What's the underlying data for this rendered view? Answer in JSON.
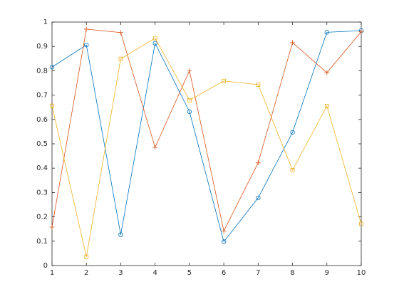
{
  "chart_data": {
    "type": "line",
    "x": [
      1,
      2,
      3,
      4,
      5,
      6,
      7,
      8,
      9,
      10
    ],
    "series": [
      {
        "color": "#0072bd",
        "marker": "o",
        "values": [
          0.815,
          0.906,
          0.127,
          0.913,
          0.632,
          0.098,
          0.278,
          0.547,
          0.958,
          0.965
        ]
      },
      {
        "color": "#d95319",
        "marker": "+",
        "values": [
          0.158,
          0.971,
          0.957,
          0.485,
          0.8,
          0.142,
          0.422,
          0.916,
          0.792,
          0.96
        ]
      },
      {
        "color": "#edb120",
        "marker": "s",
        "values": [
          0.656,
          0.036,
          0.849,
          0.934,
          0.679,
          0.758,
          0.743,
          0.392,
          0.655,
          0.171
        ]
      }
    ],
    "xlim": [
      1,
      10
    ],
    "xticks": [
      1,
      2,
      3,
      4,
      5,
      6,
      7,
      8,
      9,
      10
    ],
    "ylim": [
      0,
      1
    ],
    "yticks": [
      0,
      0.1,
      0.2,
      0.3,
      0.4,
      0.5,
      0.6,
      0.7,
      0.8,
      0.9,
      1
    ],
    "grid": false
  }
}
